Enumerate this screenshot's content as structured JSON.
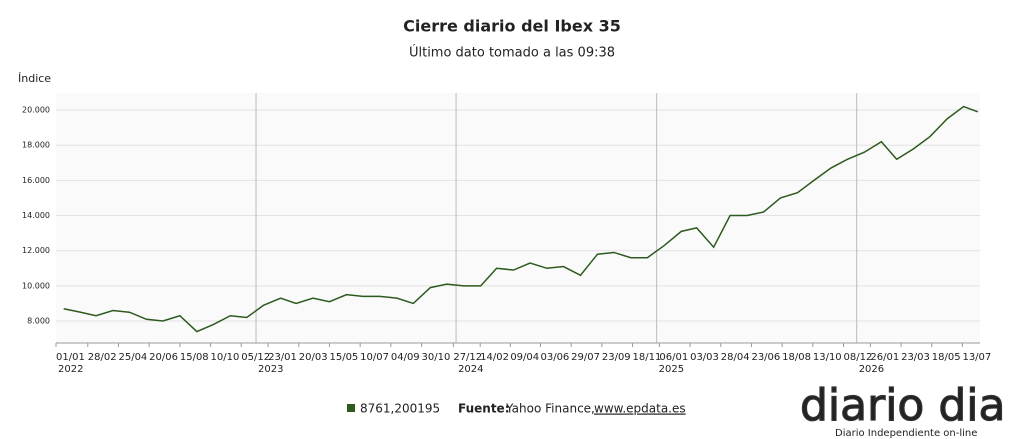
{
  "chart_data": {
    "type": "line",
    "title": "Cierre diario del Ibex 35",
    "subtitle": "Último dato tomado a las 09:38",
    "y_label": "Índice",
    "x": [
      "2022-01-15",
      "2022-02-15",
      "2022-03-15",
      "2022-04-15",
      "2022-05-15",
      "2022-06-15",
      "2022-07-15",
      "2022-08-15",
      "2022-09-15",
      "2022-10-15",
      "2022-11-15",
      "2022-12-15",
      "2023-01-15",
      "2023-02-15",
      "2023-03-15",
      "2023-04-15",
      "2023-05-15",
      "2023-06-15",
      "2023-07-15",
      "2023-08-15",
      "2023-09-15",
      "2023-10-15",
      "2023-11-15",
      "2023-12-15",
      "2024-01-15",
      "2024-02-15",
      "2024-03-15",
      "2024-04-15",
      "2024-05-15",
      "2024-06-15",
      "2024-07-15",
      "2024-08-15",
      "2024-09-15",
      "2024-10-15",
      "2024-11-15",
      "2024-12-15",
      "2025-01-15",
      "2025-02-15",
      "2025-03-15",
      "2025-04-15",
      "2025-05-15",
      "2025-06-15",
      "2025-07-15",
      "2025-08-15",
      "2025-09-15",
      "2025-10-15",
      "2025-11-15",
      "2025-12-15",
      "2026-01-15",
      "2026-02-15",
      "2026-03-15",
      "2026-04-15",
      "2026-05-15",
      "2026-06-15",
      "2026-07-15",
      "2026-08-10"
    ],
    "series": [
      {
        "name": "8761,200195",
        "color": "#2d5a1e",
        "values": [
          8700,
          8500,
          8300,
          8600,
          8500,
          8100,
          8000,
          8300,
          7400,
          7800,
          8300,
          8200,
          8900,
          9300,
          9000,
          9300,
          9100,
          9500,
          9400,
          9400,
          9300,
          9000,
          9900,
          10100,
          10000,
          10000,
          11000,
          10900,
          11300,
          11000,
          11100,
          10600,
          11800,
          11900,
          11600,
          11600,
          12300,
          13100,
          13300,
          12200,
          14000,
          14000,
          14200,
          15000,
          15300,
          16000,
          16700,
          17200,
          17600,
          18200,
          17200,
          17800,
          18500,
          19500,
          20200,
          19900
        ]
      }
    ],
    "xlim": [
      "2022-01-01",
      "2026-08-14"
    ],
    "ylim": [
      6750,
      20970
    ],
    "yticks": [
      {
        "value": 8000,
        "label": "8.000"
      },
      {
        "value": 10000,
        "label": "10.000"
      },
      {
        "value": 12000,
        "label": "12.000"
      },
      {
        "value": 14000,
        "label": "14.000"
      },
      {
        "value": 16000,
        "label": "16.000"
      },
      {
        "value": 18000,
        "label": "18.000"
      },
      {
        "value": 20000,
        "label": "20.000"
      }
    ],
    "xticks": [
      {
        "value": "2022-01-01",
        "label": "01/01"
      },
      {
        "value": "2022-02-28",
        "label": "28/02"
      },
      {
        "value": "2022-04-25",
        "label": "25/04"
      },
      {
        "value": "2022-06-20",
        "label": "20/06"
      },
      {
        "value": "2022-08-15",
        "label": "15/08"
      },
      {
        "value": "2022-10-10",
        "label": "10/10"
      },
      {
        "value": "2022-12-05",
        "label": "05/12"
      },
      {
        "value": "2023-01-23",
        "label": "23/01"
      },
      {
        "value": "2023-03-20",
        "label": "20/03"
      },
      {
        "value": "2023-05-15",
        "label": "15/05"
      },
      {
        "value": "2023-07-10",
        "label": "10/07"
      },
      {
        "value": "2023-09-04",
        "label": "04/09"
      },
      {
        "value": "2023-10-30",
        "label": "30/10"
      },
      {
        "value": "2023-12-27",
        "label": "27/12"
      },
      {
        "value": "2024-02-14",
        "label": "14/02"
      },
      {
        "value": "2024-04-09",
        "label": "09/04"
      },
      {
        "value": "2024-06-03",
        "label": "03/06"
      },
      {
        "value": "2024-07-29",
        "label": "29/07"
      },
      {
        "value": "2024-09-23",
        "label": "23/09"
      },
      {
        "value": "2024-11-18",
        "label": "18/11"
      },
      {
        "value": "2025-01-06",
        "label": "06/01"
      },
      {
        "value": "2025-03-03",
        "label": "03/03"
      },
      {
        "value": "2025-04-28",
        "label": "28/04"
      },
      {
        "value": "2025-06-23",
        "label": "23/06"
      },
      {
        "value": "2025-08-18",
        "label": "18/08"
      },
      {
        "value": "2025-10-13",
        "label": "13/10"
      },
      {
        "value": "2025-12-08",
        "label": "08/12"
      },
      {
        "value": "2026-01-26",
        "label": "26/01"
      },
      {
        "value": "2026-03-23",
        "label": "23/03"
      },
      {
        "value": "2026-05-18",
        "label": "18/05"
      },
      {
        "value": "2026-07-13",
        "label": "13/07"
      }
    ],
    "year_ticks": [
      {
        "value": "2022-01-01",
        "label": "2022"
      },
      {
        "value": "2023-01-01",
        "label": "2023"
      },
      {
        "value": "2024-01-01",
        "label": "2024"
      },
      {
        "value": "2025-01-01",
        "label": "2025"
      },
      {
        "value": "2026-01-01",
        "label": "2026"
      }
    ],
    "grid": true,
    "source_label": "Fuente:",
    "source_text": "Yahoo Finance,",
    "source_link": "www.epdata.es",
    "logo": "diario dia",
    "logo_tagline": "Diario Independiente on-line"
  }
}
